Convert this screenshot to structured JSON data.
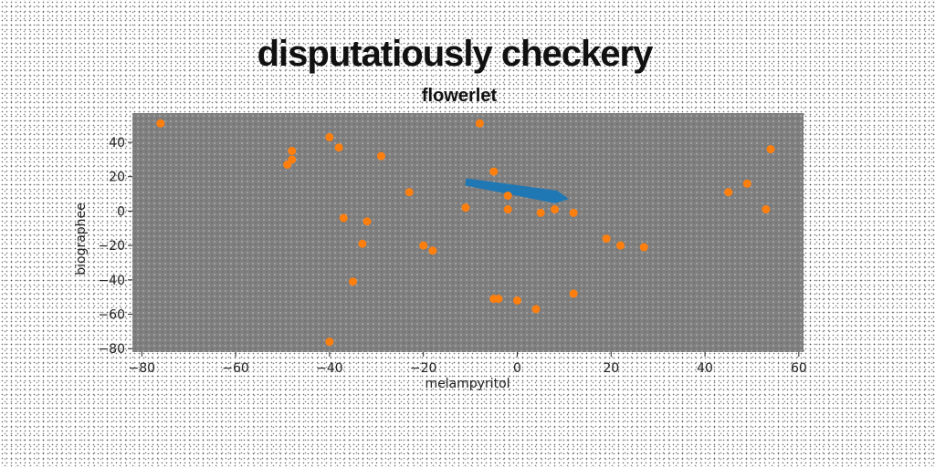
{
  "chart_data": {
    "type": "scatter",
    "title": "disputatiously checkery",
    "subtitle": "flowerlet",
    "xlabel": "melampyritol",
    "ylabel": "biographee",
    "xlim": [
      -82,
      61
    ],
    "ylim": [
      -82,
      57
    ],
    "xticks": [
      -80,
      -60,
      -40,
      -20,
      0,
      20,
      40,
      60
    ],
    "yticks": [
      -80,
      -60,
      -40,
      -20,
      0,
      20,
      40
    ],
    "grid": false,
    "colors": {
      "plot_bg": "#808080",
      "points": "#ff7f0e",
      "arrow": "#1f77b4"
    },
    "points": [
      [
        -76,
        51
      ],
      [
        -48,
        35
      ],
      [
        -48,
        30
      ],
      [
        -49,
        27
      ],
      [
        -40,
        43
      ],
      [
        -38,
        37
      ],
      [
        -29,
        32
      ],
      [
        -23,
        11
      ],
      [
        -8,
        51
      ],
      [
        -5,
        23
      ],
      [
        -2,
        9
      ],
      [
        -11,
        2
      ],
      [
        -2,
        1
      ],
      [
        5,
        -1
      ],
      [
        8,
        1
      ],
      [
        12,
        -1
      ],
      [
        -37,
        -4
      ],
      [
        -32,
        -6
      ],
      [
        -33,
        -19
      ],
      [
        -20,
        -20
      ],
      [
        -18,
        -23
      ],
      [
        -35,
        -41
      ],
      [
        -40,
        -76
      ],
      [
        -5,
        -51
      ],
      [
        -4,
        -51
      ],
      [
        0,
        -52
      ],
      [
        4,
        -57
      ],
      [
        12,
        -48
      ],
      [
        19,
        -16
      ],
      [
        22,
        -20
      ],
      [
        27,
        -21
      ],
      [
        45,
        11
      ],
      [
        49,
        16
      ],
      [
        53,
        1
      ],
      [
        54,
        36
      ]
    ],
    "arrow": {
      "from": [
        -11,
        17
      ],
      "to": [
        11,
        7
      ]
    }
  }
}
